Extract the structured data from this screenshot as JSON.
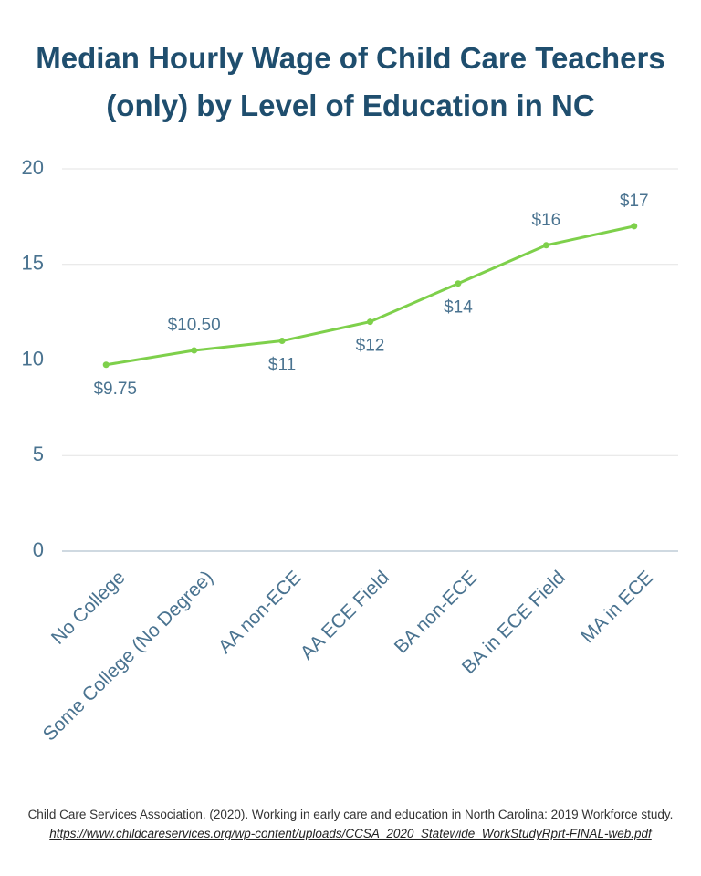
{
  "chart_data": {
    "type": "line",
    "title": "Median Hourly Wage of Child Care Teachers (only) by Level of Education in NC",
    "categories": [
      "No College",
      "Some College (No Degree)",
      "AA non-ECE",
      "AA ECE Field",
      "BA non-ECE",
      "BA in ECE Field",
      "MA in ECE"
    ],
    "values": [
      9.75,
      10.5,
      11,
      12,
      14,
      16,
      17
    ],
    "value_labels": [
      "$9.75",
      "$10.50",
      "$11",
      "$12",
      "$14",
      "$16",
      "$17"
    ],
    "color": "#7ed04b",
    "ylim": [
      0,
      20
    ],
    "yticks": [
      0,
      5,
      10,
      15,
      20
    ],
    "grid": true,
    "source": "Child Care Services Association. (2020). Working in early care and education in North Carolina: 2019 Workforce study.",
    "source_url": "https://www.childcareservices.org/wp-content/uploads/CCSA_2020_Statewide_WorkStudyRprt-FINAL-web.pdf"
  }
}
